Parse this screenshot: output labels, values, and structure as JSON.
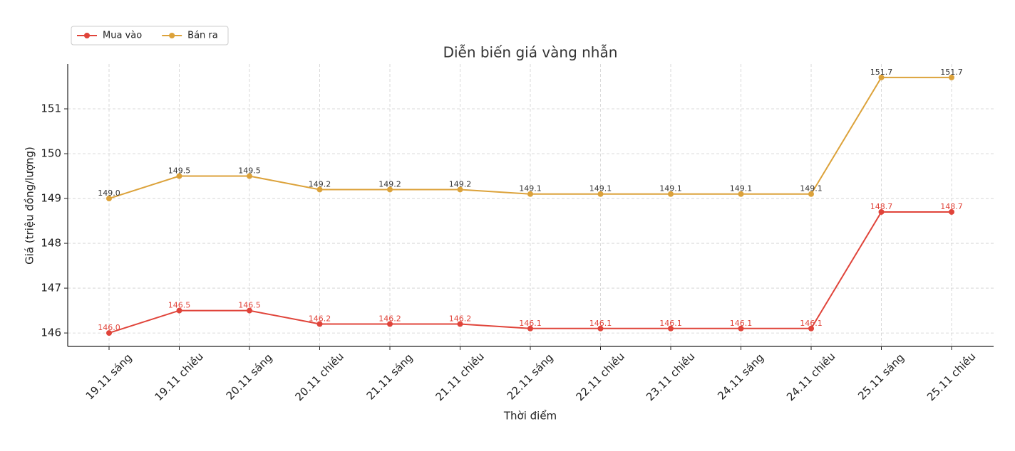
{
  "chart_data": {
    "type": "line",
    "title": "Diễn biến giá vàng nhẫn",
    "x_label": "Thời điểm",
    "y_label": "Giá (triệu đồng/lượng)",
    "categories": [
      "19.11 sáng",
      "19.11 chiều",
      "20.11 sáng",
      "20.11 chiều",
      "21.11 sáng",
      "21.11 chiều",
      "22.11 sáng",
      "22.11 chiều",
      "23.11 chiều",
      "24.11 sáng",
      "24.11 chiều",
      "25.11 sáng",
      "25.11 chiều"
    ],
    "series": [
      {
        "name": "Mua vào",
        "color": "#e0443a",
        "label_color": "#e0443a",
        "values": [
          146.0,
          146.5,
          146.5,
          146.2,
          146.2,
          146.2,
          146.1,
          146.1,
          146.1,
          146.1,
          146.1,
          148.7,
          148.7
        ],
        "value_labels": [
          "146.0",
          "146.5",
          "146.5",
          "146.2",
          "146.2",
          "146.2",
          "146.1",
          "146.1",
          "146.1",
          "146.1",
          "146.1",
          "148.7",
          "148.7"
        ]
      },
      {
        "name": "Bán ra",
        "color": "#dca23a",
        "label_color": "#333333",
        "values": [
          149.0,
          149.5,
          149.5,
          149.2,
          149.2,
          149.2,
          149.1,
          149.1,
          149.1,
          149.1,
          149.1,
          151.7,
          151.7
        ],
        "value_labels": [
          "149.0",
          "149.5",
          "149.5",
          "149.2",
          "149.2",
          "149.2",
          "149.1",
          "149.1",
          "149.1",
          "149.1",
          "149.1",
          "151.7",
          "151.7"
        ]
      }
    ],
    "ylim": [
      145.7,
      152.0
    ],
    "yticks": [
      146,
      147,
      148,
      149,
      150,
      151
    ],
    "grid": true,
    "legend": "upper left"
  }
}
